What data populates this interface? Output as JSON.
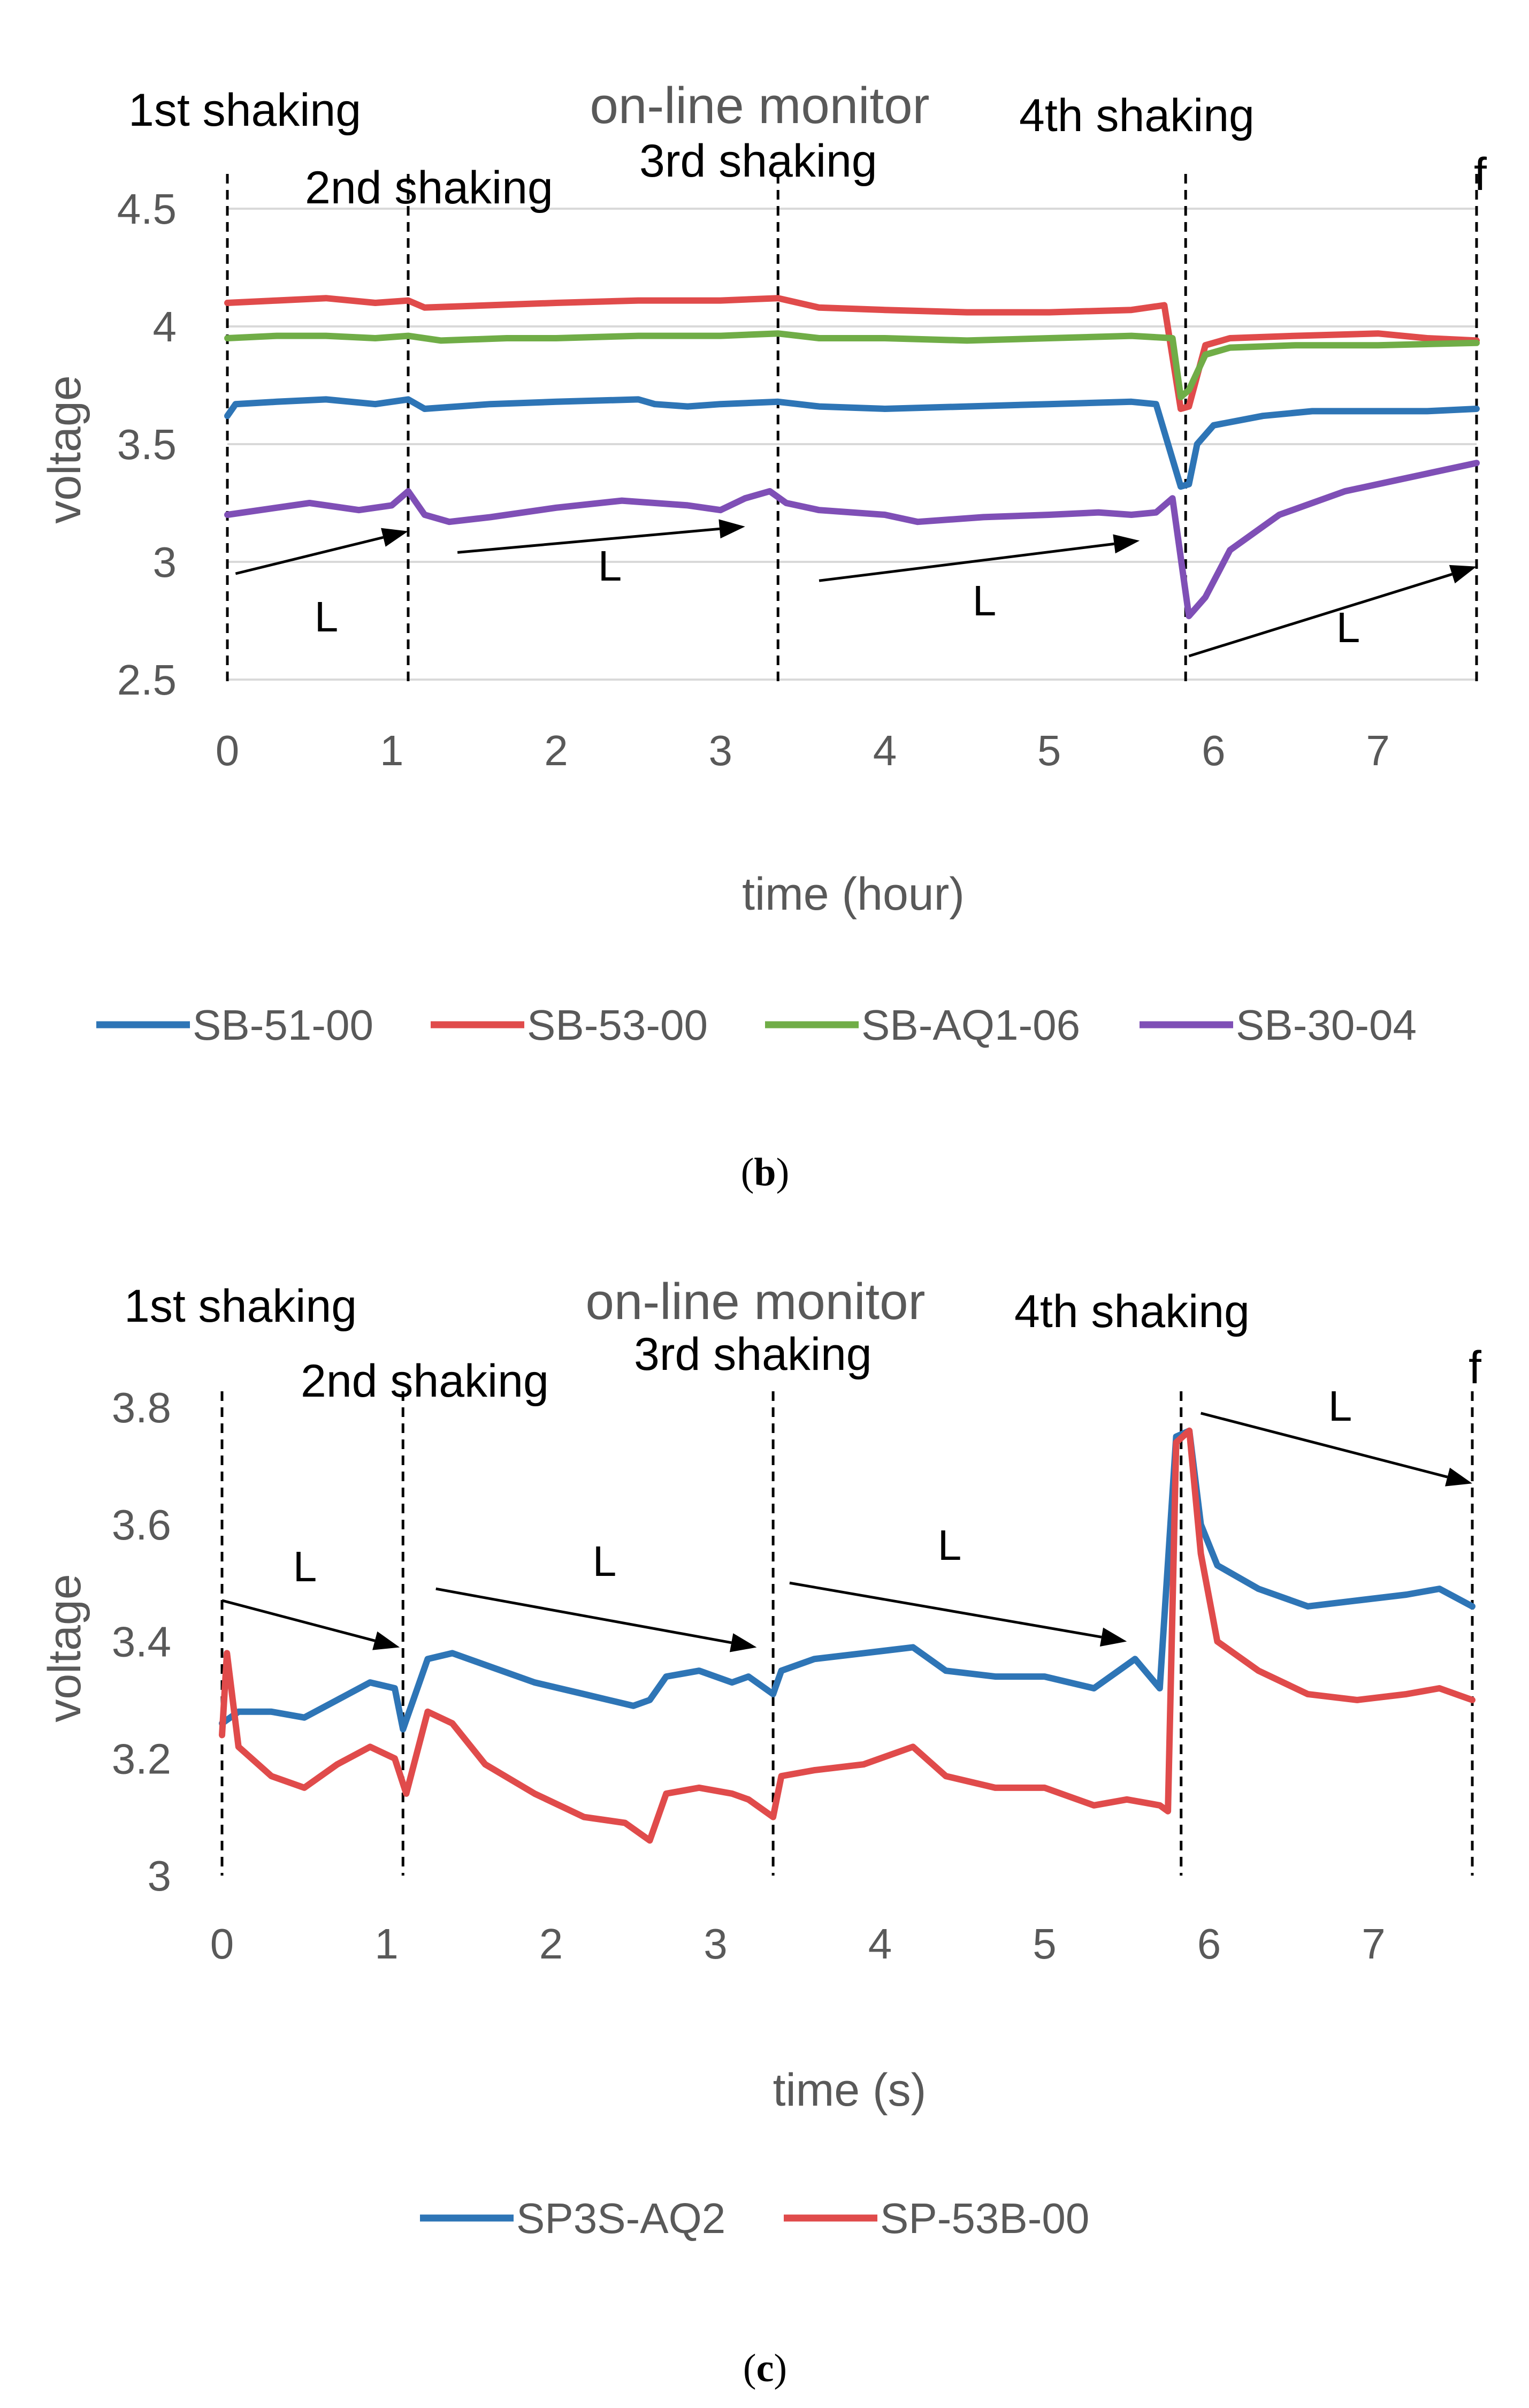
{
  "chart_data": [
    {
      "type": "line",
      "panel_label": "b",
      "title": "on-line monitor",
      "xlabel": "time (hour)",
      "ylabel": "voltage",
      "xlim": [
        0,
        7.6
      ],
      "ylim": [
        2.5,
        4.5
      ],
      "x_ticks": [
        0,
        1,
        2,
        3,
        4,
        5,
        6,
        7
      ],
      "y_ticks": [
        2.5,
        3,
        3.5,
        4,
        4.5
      ],
      "y_tick_labels": [
        "2.5",
        "3",
        "3.5",
        "4",
        "4.5"
      ],
      "grid": "horizontal",
      "legend_position": "bottom",
      "events": [
        {
          "label": "1st shaking",
          "x": 0.0
        },
        {
          "label": "2nd shaking",
          "x": 1.1
        },
        {
          "label": "3rd shaking",
          "x": 3.35
        },
        {
          "label": "4th shaking",
          "x": 5.83
        },
        {
          "label": "f",
          "x": 7.6
        }
      ],
      "arrows": [
        {
          "label": "L",
          "from": [
            0.05,
            2.95
          ],
          "to": [
            1.1,
            3.13
          ]
        },
        {
          "label": "L",
          "from": [
            1.4,
            3.04
          ],
          "to": [
            3.15,
            3.15
          ]
        },
        {
          "label": "L",
          "from": [
            3.6,
            2.92
          ],
          "to": [
            5.55,
            3.09
          ]
        },
        {
          "label": "L",
          "from": [
            5.85,
            2.6
          ],
          "to": [
            7.6,
            2.98
          ]
        }
      ],
      "series": [
        {
          "name": "SB-51-00",
          "color": "#2E75B6",
          "x": [
            0,
            0.05,
            0.3,
            0.6,
            0.9,
            1.1,
            1.2,
            1.6,
            2.0,
            2.5,
            2.6,
            2.8,
            3.0,
            3.35,
            3.6,
            4.0,
            4.5,
            5.0,
            5.5,
            5.65,
            5.8,
            5.85,
            5.9,
            6.0,
            6.3,
            6.6,
            7.0,
            7.3,
            7.6
          ],
          "values": [
            3.62,
            3.67,
            3.68,
            3.69,
            3.67,
            3.69,
            3.65,
            3.67,
            3.68,
            3.69,
            3.67,
            3.66,
            3.67,
            3.68,
            3.66,
            3.65,
            3.66,
            3.67,
            3.68,
            3.67,
            3.32,
            3.33,
            3.5,
            3.58,
            3.62,
            3.64,
            3.64,
            3.64,
            3.65
          ]
        },
        {
          "name": "SB-53-00",
          "color": "#E04B4B",
          "x": [
            0,
            0.3,
            0.6,
            0.9,
            1.1,
            1.2,
            1.6,
            2.0,
            2.5,
            3.0,
            3.35,
            3.6,
            4.0,
            4.5,
            5.0,
            5.5,
            5.7,
            5.8,
            5.85,
            5.95,
            6.1,
            6.5,
            7.0,
            7.3,
            7.6
          ],
          "values": [
            4.1,
            4.11,
            4.12,
            4.1,
            4.11,
            4.08,
            4.09,
            4.1,
            4.11,
            4.11,
            4.12,
            4.08,
            4.07,
            4.06,
            4.06,
            4.07,
            4.09,
            3.65,
            3.66,
            3.92,
            3.95,
            3.96,
            3.97,
            3.95,
            3.94
          ]
        },
        {
          "name": "SB-AQ1-06",
          "color": "#70AD47",
          "x": [
            0,
            0.3,
            0.6,
            0.9,
            1.1,
            1.3,
            1.7,
            2.0,
            2.5,
            3.0,
            3.35,
            3.6,
            4.0,
            4.5,
            5.0,
            5.5,
            5.75,
            5.8,
            5.85,
            5.95,
            6.1,
            6.5,
            7.0,
            7.6
          ],
          "values": [
            3.95,
            3.96,
            3.96,
            3.95,
            3.96,
            3.94,
            3.95,
            3.95,
            3.96,
            3.96,
            3.97,
            3.95,
            3.95,
            3.94,
            3.95,
            3.96,
            3.95,
            3.7,
            3.73,
            3.88,
            3.91,
            3.92,
            3.92,
            3.93
          ]
        },
        {
          "name": "SB-30-04",
          "color": "#7F4FB6",
          "x": [
            0,
            0.2,
            0.5,
            0.8,
            1.0,
            1.1,
            1.2,
            1.35,
            1.6,
            2.0,
            2.4,
            2.8,
            3.0,
            3.15,
            3.3,
            3.4,
            3.6,
            4.0,
            4.2,
            4.6,
            5.0,
            5.3,
            5.5,
            5.65,
            5.75,
            5.85,
            5.95,
            6.1,
            6.4,
            6.8,
            7.2,
            7.6
          ],
          "values": [
            3.2,
            3.22,
            3.25,
            3.22,
            3.24,
            3.3,
            3.2,
            3.17,
            3.19,
            3.23,
            3.26,
            3.24,
            3.22,
            3.27,
            3.3,
            3.25,
            3.22,
            3.2,
            3.17,
            3.19,
            3.2,
            3.21,
            3.2,
            3.21,
            3.27,
            2.77,
            2.85,
            3.05,
            3.2,
            3.3,
            3.36,
            3.42
          ]
        }
      ]
    },
    {
      "type": "line",
      "panel_label": "c",
      "title": "on-line monitor",
      "xlabel": "time (s)",
      "ylabel": "voltage",
      "xlim": [
        0,
        7.6
      ],
      "ylim": [
        3.0,
        3.8
      ],
      "x_ticks": [
        0,
        1,
        2,
        3,
        4,
        5,
        6,
        7
      ],
      "y_ticks": [
        3.0,
        3.2,
        3.4,
        3.6,
        3.8
      ],
      "y_tick_labels": [
        "3",
        "3.2",
        "3.4",
        "3.6",
        "3.8"
      ],
      "grid": "none",
      "legend_position": "bottom",
      "events": [
        {
          "label": "1st shaking",
          "x": 0.0
        },
        {
          "label": "2nd shaking",
          "x": 1.1
        },
        {
          "label": "3rd shaking",
          "x": 3.35
        },
        {
          "label": "4th shaking",
          "x": 5.83
        },
        {
          "label": "f",
          "x": 7.6
        }
      ],
      "arrows": [
        {
          "label": "L",
          "from": [
            0.0,
            3.47
          ],
          "to": [
            1.08,
            3.39
          ]
        },
        {
          "label": "L",
          "from": [
            1.3,
            3.49
          ],
          "to": [
            3.25,
            3.39
          ]
        },
        {
          "label": "L",
          "from": [
            3.45,
            3.5
          ],
          "to": [
            5.5,
            3.4
          ]
        },
        {
          "label": "L",
          "from": [
            5.95,
            3.79
          ],
          "to": [
            7.6,
            3.67
          ]
        }
      ],
      "series": [
        {
          "name": "SP3S-AQ2",
          "color": "#2E75B6",
          "x": [
            0,
            0.1,
            0.3,
            0.5,
            0.7,
            0.9,
            1.05,
            1.1,
            1.25,
            1.4,
            1.6,
            1.9,
            2.2,
            2.5,
            2.6,
            2.7,
            2.9,
            3.1,
            3.2,
            3.35,
            3.4,
            3.6,
            3.9,
            4.2,
            4.4,
            4.7,
            5.0,
            5.3,
            5.45,
            5.55,
            5.7,
            5.8,
            5.88,
            5.95,
            6.05,
            6.3,
            6.6,
            6.9,
            7.2,
            7.4,
            7.6
          ],
          "values": [
            3.26,
            3.28,
            3.28,
            3.27,
            3.3,
            3.33,
            3.32,
            3.25,
            3.37,
            3.38,
            3.36,
            3.33,
            3.31,
            3.29,
            3.3,
            3.34,
            3.35,
            3.33,
            3.34,
            3.31,
            3.35,
            3.37,
            3.38,
            3.39,
            3.35,
            3.34,
            3.34,
            3.32,
            3.35,
            3.37,
            3.32,
            3.75,
            3.76,
            3.6,
            3.53,
            3.49,
            3.46,
            3.47,
            3.48,
            3.49,
            3.46
          ]
        },
        {
          "name": "SP-53B-00",
          "color": "#E04B4B",
          "x": [
            0,
            0.03,
            0.1,
            0.3,
            0.5,
            0.7,
            0.9,
            1.05,
            1.12,
            1.25,
            1.4,
            1.6,
            1.9,
            2.2,
            2.45,
            2.6,
            2.7,
            2.9,
            3.1,
            3.2,
            3.35,
            3.4,
            3.6,
            3.9,
            4.2,
            4.4,
            4.7,
            5.0,
            5.3,
            5.5,
            5.7,
            5.75,
            5.8,
            5.88,
            5.95,
            6.05,
            6.3,
            6.6,
            6.9,
            7.2,
            7.4,
            7.6
          ],
          "values": [
            3.24,
            3.38,
            3.22,
            3.17,
            3.15,
            3.19,
            3.22,
            3.2,
            3.14,
            3.28,
            3.26,
            3.19,
            3.14,
            3.1,
            3.09,
            3.06,
            3.14,
            3.15,
            3.14,
            3.13,
            3.1,
            3.17,
            3.18,
            3.19,
            3.22,
            3.17,
            3.15,
            3.15,
            3.12,
            3.13,
            3.12,
            3.11,
            3.74,
            3.76,
            3.55,
            3.4,
            3.35,
            3.31,
            3.3,
            3.31,
            3.32,
            3.3
          ]
        }
      ]
    }
  ]
}
